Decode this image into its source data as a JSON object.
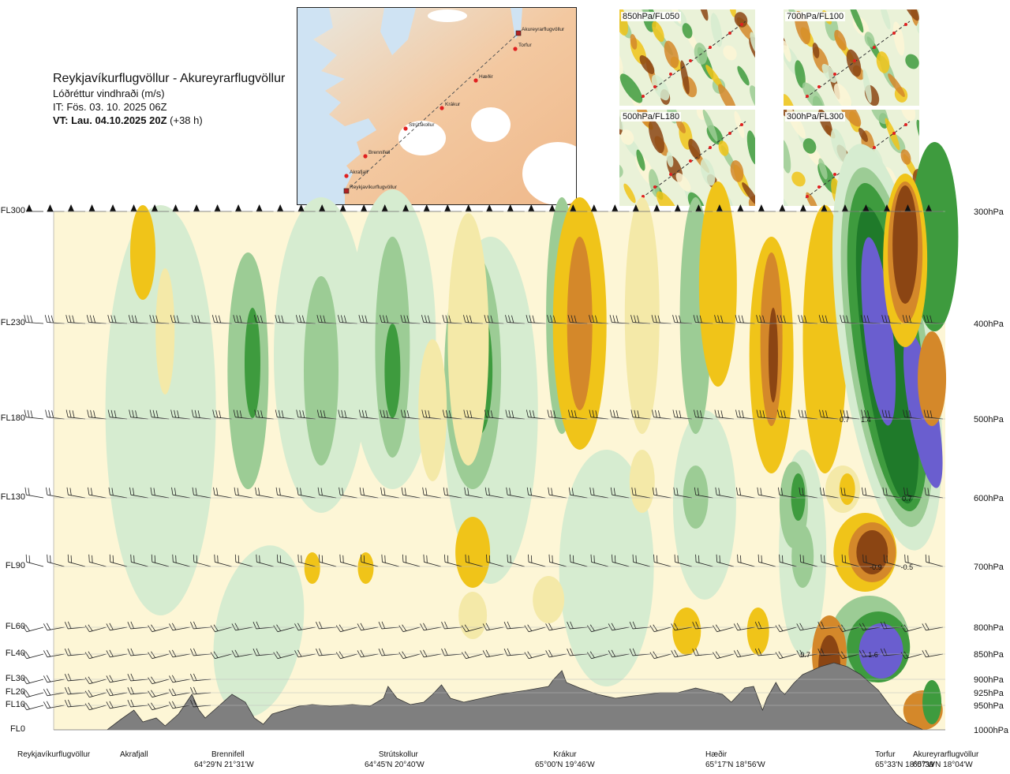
{
  "header": {
    "route": "Reykjavíkurflugvöllur - Akureyrarflugvöllur",
    "variable": "Lóðréttur vindhraði (m/s)",
    "init_time": "IT: Fös. 03. 10. 2025 06Z",
    "valid_time_bold": "VT: Lau. 04.10.2025 20Z",
    "valid_time_offset": "(+38 h)"
  },
  "route_map": {
    "waypoints": [
      "Akureyrarflugvöllur",
      "Torfur",
      "Hæðir",
      "Krákur",
      "Strútskollur",
      "Brennifell",
      "Akrafjall",
      "Reykjavíkurflugvöllur"
    ]
  },
  "level_maps": [
    {
      "label": "850hPa/FL050"
    },
    {
      "label": "700hPa/FL100"
    },
    {
      "label": "500hPa/FL180"
    },
    {
      "label": "300hPa/FL300"
    }
  ],
  "chart_data": {
    "type": "heatmap",
    "title": "Lóðréttur vindhraði (m/s)",
    "xlabel": "",
    "ylabel": "",
    "flight_levels": [
      {
        "label": "FL300",
        "hpa": "300hPa"
      },
      {
        "label": "FL230",
        "hpa": "400hPa"
      },
      {
        "label": "FL180",
        "hpa": "500hPa"
      },
      {
        "label": "FL130",
        "hpa": "600hPa"
      },
      {
        "label": "FL90",
        "hpa": "700hPa"
      },
      {
        "label": "FL60",
        "hpa": "800hPa"
      },
      {
        "label": "FL40",
        "hpa": "850hPa"
      },
      {
        "label": "FL30",
        "hpa": "900hPa"
      },
      {
        "label": "FL20",
        "hpa": "925hPa"
      },
      {
        "label": "FL10",
        "hpa": "950hPa"
      },
      {
        "label": "FL0",
        "hpa": "1000hPa"
      }
    ],
    "locations": [
      {
        "name": "Reykjavíkurflugvöllur",
        "coord": ""
      },
      {
        "name": "Akrafjall",
        "coord": ""
      },
      {
        "name": "Brennifell",
        "coord": "64°29'N 21°31'W"
      },
      {
        "name": "Strútskollur",
        "coord": "64°45'N 20°40'W"
      },
      {
        "name": "Krákur",
        "coord": "65°00'N 19°46'W"
      },
      {
        "name": "Hæðir",
        "coord": "65°17'N 18°56'W"
      },
      {
        "name": "Torfur",
        "coord": "65°33'N 18°07'W"
      },
      {
        "name": "Akureyrarflugvöllur",
        "coord": "65°39'N 18°04'W"
      }
    ],
    "contour_values": [
      {
        "value": "0.7",
        "level": "FL180",
        "fraction": 0.887
      },
      {
        "value": "1.4",
        "level": "FL180",
        "fraction": 0.911
      },
      {
        "value": "0.7",
        "level": "FL130",
        "fraction": 0.957
      },
      {
        "value": "-0.9",
        "level": "FL90",
        "fraction": 0.922
      },
      {
        "value": "-0.5",
        "level": "FL90",
        "fraction": 0.957
      },
      {
        "value": "0.7",
        "level": "FL40",
        "fraction": 0.843
      },
      {
        "value": "1.6",
        "level": "FL40",
        "fraction": 0.919
      }
    ],
    "colors": {
      "strong_down": "#8b4513",
      "down": "#d4882a",
      "weak_down": "#f0c419",
      "slight_down": "#f4e9a8",
      "neutral": "#fdf6d6",
      "slight_up": "#d6ecd0",
      "weak_up": "#9ccc95",
      "up": "#3e9b3e",
      "strong_up": "#1f7a2a",
      "very_strong_up": "#6a5ecf",
      "terrain": "#7f7f7f"
    }
  }
}
